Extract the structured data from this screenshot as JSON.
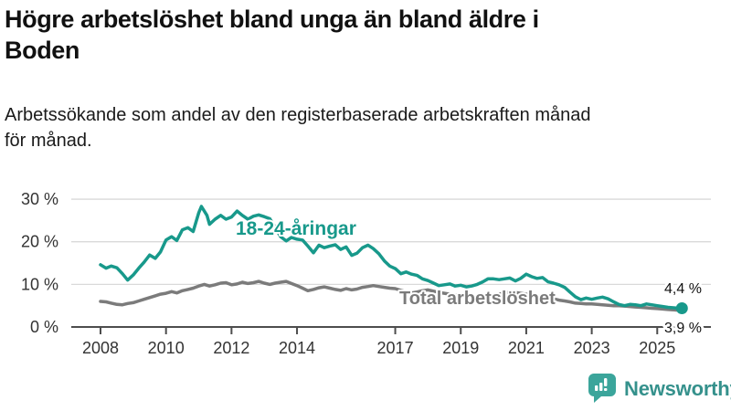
{
  "header": {
    "title_line1": "Högre arbetslöshet bland unga än bland äldre i",
    "title_line2": "Boden",
    "subtitle_line1": "Arbetssökande som andel av den registerbaserade arbetskraften månad",
    "subtitle_line2": "för månad."
  },
  "footer": {
    "brand": "Newsworthy"
  },
  "colors": {
    "young_line": "#18998b",
    "total_line": "#7b7b7b",
    "grid": "#d9d9d9",
    "axis": "#4d4d4d",
    "tick_text": "#333333",
    "brand_badge": "#3ba59b",
    "brand_text": "#35918c"
  },
  "chart_data": {
    "type": "line",
    "x_unit": "year (monthly data)",
    "y_unit": "percent",
    "x_ticks": [
      "2008",
      "2010",
      "2012",
      "2014",
      "2017",
      "2019",
      "2021",
      "2023",
      "2025"
    ],
    "x_tick_years": [
      2008,
      2010,
      2012,
      2014,
      2017,
      2019,
      2021,
      2023,
      2025
    ],
    "y_ticks": [
      {
        "value": 0,
        "label": "0 %"
      },
      {
        "value": 10,
        "label": "10 %"
      },
      {
        "value": 20,
        "label": "20 %"
      },
      {
        "value": 30,
        "label": "30 %"
      }
    ],
    "ylim": [
      0,
      32
    ],
    "xlim": [
      2007.9,
      2026.6
    ],
    "legend_position": "inline-labels",
    "grid": "horizontal-only",
    "series": [
      {
        "name": "Total arbetslöshet",
        "color": "#7b7b7b",
        "end_label": "3,9 %",
        "end_value": 3.9,
        "points": [
          [
            2008,
            6.0
          ],
          [
            2008.17,
            5.9
          ],
          [
            2008.33,
            5.6
          ],
          [
            2008.5,
            5.3
          ],
          [
            2008.67,
            5.2
          ],
          [
            2008.83,
            5.5
          ],
          [
            2009,
            5.7
          ],
          [
            2009.17,
            6.1
          ],
          [
            2009.33,
            6.5
          ],
          [
            2009.5,
            6.9
          ],
          [
            2009.67,
            7.3
          ],
          [
            2009.83,
            7.7
          ],
          [
            2010,
            7.9
          ],
          [
            2010.17,
            8.3
          ],
          [
            2010.33,
            8.0
          ],
          [
            2010.5,
            8.5
          ],
          [
            2010.67,
            8.8
          ],
          [
            2010.83,
            9.1
          ],
          [
            2011,
            9.6
          ],
          [
            2011.17,
            10.0
          ],
          [
            2011.33,
            9.6
          ],
          [
            2011.5,
            9.9
          ],
          [
            2011.67,
            10.3
          ],
          [
            2011.83,
            10.4
          ],
          [
            2012,
            9.9
          ],
          [
            2012.17,
            10.1
          ],
          [
            2012.33,
            10.5
          ],
          [
            2012.5,
            10.2
          ],
          [
            2012.67,
            10.4
          ],
          [
            2012.83,
            10.7
          ],
          [
            2013,
            10.3
          ],
          [
            2013.17,
            10.0
          ],
          [
            2013.33,
            10.3
          ],
          [
            2013.5,
            10.5
          ],
          [
            2013.67,
            10.7
          ],
          [
            2013.83,
            10.2
          ],
          [
            2014,
            9.7
          ],
          [
            2014.17,
            9.1
          ],
          [
            2014.33,
            8.5
          ],
          [
            2014.5,
            8.8
          ],
          [
            2014.67,
            9.2
          ],
          [
            2014.83,
            9.4
          ],
          [
            2015,
            9.1
          ],
          [
            2015.17,
            8.8
          ],
          [
            2015.33,
            8.6
          ],
          [
            2015.5,
            9.0
          ],
          [
            2015.67,
            8.7
          ],
          [
            2015.83,
            8.9
          ],
          [
            2016,
            9.3
          ],
          [
            2016.17,
            9.5
          ],
          [
            2016.33,
            9.7
          ],
          [
            2016.5,
            9.5
          ],
          [
            2016.67,
            9.3
          ],
          [
            2016.83,
            9.1
          ],
          [
            2017,
            9.0
          ],
          [
            2017.17,
            8.6
          ],
          [
            2017.33,
            8.3
          ],
          [
            2017.5,
            8.0
          ],
          [
            2017.67,
            8.2
          ],
          [
            2017.83,
            8.5
          ],
          [
            2018,
            8.7
          ],
          [
            2018.17,
            8.4
          ],
          [
            2018.33,
            8.1
          ],
          [
            2018.5,
            7.9
          ],
          [
            2018.67,
            7.7
          ],
          [
            2018.83,
            7.5
          ],
          [
            2019,
            7.4
          ],
          [
            2019.17,
            7.2
          ],
          [
            2019.33,
            7.1
          ],
          [
            2019.5,
            7.0
          ],
          [
            2019.67,
            7.1
          ],
          [
            2019.83,
            7.3
          ],
          [
            2020,
            7.4
          ],
          [
            2020.17,
            7.7
          ],
          [
            2020.33,
            8.0
          ],
          [
            2020.5,
            8.2
          ],
          [
            2020.67,
            8.1
          ],
          [
            2020.83,
            7.9
          ],
          [
            2021,
            7.7
          ],
          [
            2021.17,
            7.5
          ],
          [
            2021.33,
            7.3
          ],
          [
            2021.5,
            7.1
          ],
          [
            2021.67,
            6.9
          ],
          [
            2021.83,
            6.6
          ],
          [
            2022,
            6.3
          ],
          [
            2022.17,
            6.1
          ],
          [
            2022.33,
            5.9
          ],
          [
            2022.5,
            5.6
          ],
          [
            2022.67,
            5.5
          ],
          [
            2022.83,
            5.4
          ],
          [
            2023,
            5.4
          ],
          [
            2023.17,
            5.3
          ],
          [
            2023.33,
            5.2
          ],
          [
            2023.5,
            5.1
          ],
          [
            2023.67,
            5.0
          ],
          [
            2023.83,
            5.0
          ],
          [
            2024,
            4.9
          ],
          [
            2024.17,
            4.8
          ],
          [
            2024.33,
            4.7
          ],
          [
            2024.5,
            4.6
          ],
          [
            2024.67,
            4.5
          ],
          [
            2024.83,
            4.4
          ],
          [
            2025,
            4.3
          ],
          [
            2025.17,
            4.2
          ],
          [
            2025.33,
            4.1
          ],
          [
            2025.5,
            4.0
          ],
          [
            2025.67,
            3.9
          ]
        ]
      },
      {
        "name": "18-24-åringar",
        "color": "#18998b",
        "end_label": "4,4 %",
        "end_value": 4.4,
        "end_dot": true,
        "points": [
          [
            2008,
            14.6
          ],
          [
            2008.17,
            13.8
          ],
          [
            2008.33,
            14.3
          ],
          [
            2008.5,
            13.9
          ],
          [
            2008.67,
            12.5
          ],
          [
            2008.83,
            11.0
          ],
          [
            2009,
            12.2
          ],
          [
            2009.17,
            13.8
          ],
          [
            2009.33,
            15.2
          ],
          [
            2009.5,
            16.9
          ],
          [
            2009.67,
            16.1
          ],
          [
            2009.83,
            17.6
          ],
          [
            2010,
            20.4
          ],
          [
            2010.17,
            21.2
          ],
          [
            2010.33,
            20.3
          ],
          [
            2010.5,
            22.8
          ],
          [
            2010.67,
            23.3
          ],
          [
            2010.83,
            22.4
          ],
          [
            2011,
            26.8
          ],
          [
            2011.08,
            28.3
          ],
          [
            2011.25,
            26.2
          ],
          [
            2011.33,
            24.1
          ],
          [
            2011.5,
            25.3
          ],
          [
            2011.67,
            26.2
          ],
          [
            2011.83,
            25.3
          ],
          [
            2012,
            25.8
          ],
          [
            2012.17,
            27.2
          ],
          [
            2012.33,
            26.2
          ],
          [
            2012.5,
            25.3
          ],
          [
            2012.67,
            26.0
          ],
          [
            2012.83,
            26.3
          ],
          [
            2013,
            25.9
          ],
          [
            2013.17,
            25.4
          ],
          [
            2013.33,
            23.4
          ],
          [
            2013.5,
            21.2
          ],
          [
            2013.67,
            20.2
          ],
          [
            2013.83,
            21.0
          ],
          [
            2014,
            20.6
          ],
          [
            2014.17,
            20.4
          ],
          [
            2014.33,
            19.0
          ],
          [
            2014.5,
            17.4
          ],
          [
            2014.67,
            19.2
          ],
          [
            2014.83,
            18.6
          ],
          [
            2015,
            19.0
          ],
          [
            2015.17,
            19.3
          ],
          [
            2015.33,
            18.2
          ],
          [
            2015.5,
            18.8
          ],
          [
            2015.67,
            16.8
          ],
          [
            2015.83,
            17.3
          ],
          [
            2016,
            18.6
          ],
          [
            2016.17,
            19.2
          ],
          [
            2016.33,
            18.4
          ],
          [
            2016.5,
            17.2
          ],
          [
            2016.67,
            15.5
          ],
          [
            2016.83,
            14.3
          ],
          [
            2017,
            13.7
          ],
          [
            2017.17,
            12.5
          ],
          [
            2017.33,
            12.9
          ],
          [
            2017.5,
            12.4
          ],
          [
            2017.67,
            12.1
          ],
          [
            2017.83,
            11.3
          ],
          [
            2018,
            10.9
          ],
          [
            2018.17,
            10.3
          ],
          [
            2018.33,
            9.7
          ],
          [
            2018.5,
            9.9
          ],
          [
            2018.67,
            10.1
          ],
          [
            2018.83,
            9.6
          ],
          [
            2019,
            9.8
          ],
          [
            2019.17,
            9.4
          ],
          [
            2019.33,
            9.6
          ],
          [
            2019.5,
            10.0
          ],
          [
            2019.67,
            10.6
          ],
          [
            2019.83,
            11.3
          ],
          [
            2020,
            11.3
          ],
          [
            2020.17,
            11.1
          ],
          [
            2020.33,
            11.3
          ],
          [
            2020.5,
            11.5
          ],
          [
            2020.67,
            10.8
          ],
          [
            2020.83,
            11.4
          ],
          [
            2021,
            12.4
          ],
          [
            2021.17,
            11.8
          ],
          [
            2021.33,
            11.4
          ],
          [
            2021.5,
            11.6
          ],
          [
            2021.67,
            10.6
          ],
          [
            2021.83,
            10.3
          ],
          [
            2022,
            9.9
          ],
          [
            2022.17,
            9.3
          ],
          [
            2022.33,
            8.2
          ],
          [
            2022.5,
            7.1
          ],
          [
            2022.67,
            6.4
          ],
          [
            2022.83,
            6.8
          ],
          [
            2023,
            6.5
          ],
          [
            2023.17,
            6.8
          ],
          [
            2023.33,
            7.0
          ],
          [
            2023.5,
            6.6
          ],
          [
            2023.67,
            5.9
          ],
          [
            2023.83,
            5.3
          ],
          [
            2024,
            5.0
          ],
          [
            2024.17,
            5.3
          ],
          [
            2024.33,
            5.2
          ],
          [
            2024.5,
            5.0
          ],
          [
            2024.67,
            5.4
          ],
          [
            2024.83,
            5.2
          ],
          [
            2025,
            5.0
          ],
          [
            2025.17,
            4.8
          ],
          [
            2025.33,
            4.6
          ],
          [
            2025.5,
            4.5
          ],
          [
            2025.67,
            4.4
          ]
        ]
      }
    ],
    "annotations": [
      {
        "text": "18-24-åringar",
        "color": "#18998b",
        "x": 2012.1,
        "y": 22.5
      },
      {
        "text": "Total arbetslöshet",
        "color": "#7b7b7b",
        "x": 2017.1,
        "y": 6.0
      }
    ]
  }
}
